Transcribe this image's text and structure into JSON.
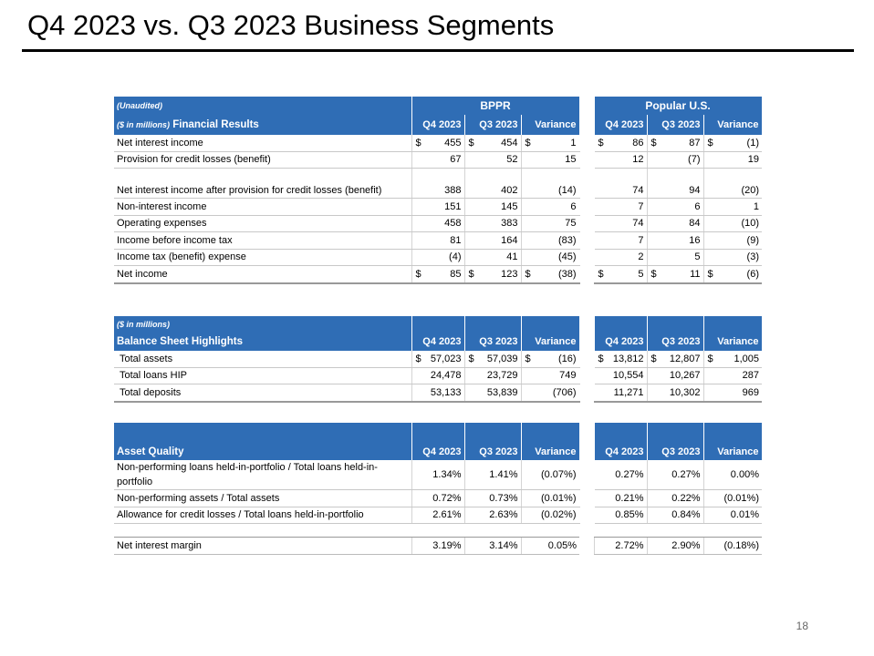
{
  "title": "Q4 2023 vs. Q3 2023 Business Segments",
  "page_number": "18",
  "accent_color": "#2f6db5",
  "groups": {
    "bppr": "BPPR",
    "us": "Popular U.S."
  },
  "columns": [
    "Q4 2023",
    "Q3 2023",
    "Variance"
  ],
  "financial": {
    "unaudited": "(Unaudited)",
    "units": "($ in millions)",
    "header": "Financial Results",
    "rows": [
      {
        "label": "Net interest income",
        "dollar": true,
        "values": [
          "455",
          "454",
          "1",
          "86",
          "87",
          "(1)"
        ]
      },
      {
        "label": "Provision for credit losses (benefit)",
        "values": [
          "67",
          "52",
          "15",
          "12",
          "(7)",
          "19"
        ]
      },
      {
        "label": "Net interest income after provision for credit losses (benefit)",
        "values": [
          "388",
          "402",
          "(14)",
          "74",
          "94",
          "(20)"
        ]
      },
      {
        "label": "Non-interest income",
        "values": [
          "151",
          "145",
          "6",
          "7",
          "6",
          "1"
        ]
      },
      {
        "label": "Operating expenses",
        "values": [
          "458",
          "383",
          "75",
          "74",
          "84",
          "(10)"
        ]
      },
      {
        "label": "Income before income tax",
        "values": [
          "81",
          "164",
          "(83)",
          "7",
          "16",
          "(9)"
        ]
      },
      {
        "label": "Income tax (benefit) expense",
        "values": [
          "(4)",
          "41",
          "(45)",
          "2",
          "5",
          "(3)"
        ]
      },
      {
        "label": "Net income",
        "dollar": true,
        "values": [
          "85",
          "123",
          "(38)",
          "5",
          "11",
          "(6)"
        ]
      }
    ]
  },
  "balance": {
    "units": "($ in millions)",
    "header": "Balance Sheet Highlights",
    "rows": [
      {
        "label": "Total assets",
        "dollar": true,
        "values": [
          "57,023",
          "57,039",
          "(16)",
          "13,812",
          "12,807",
          "1,005"
        ]
      },
      {
        "label": "Total loans HIP",
        "values": [
          "24,478",
          "23,729",
          "749",
          "10,554",
          "10,267",
          "287"
        ]
      },
      {
        "label": "Total deposits",
        "values": [
          "53,133",
          "53,839",
          "(706)",
          "11,271",
          "10,302",
          "969"
        ]
      }
    ]
  },
  "asset_quality": {
    "header": "Asset Quality",
    "rows": [
      {
        "label": "Non-performing loans held-in-portfolio / Total loans held-in-portfolio",
        "values": [
          "1.34%",
          "1.41%",
          "(0.07%)",
          "0.27%",
          "0.27%",
          "0.00%"
        ]
      },
      {
        "label": "Non-performing assets / Total assets",
        "values": [
          "0.72%",
          "0.73%",
          "(0.01%)",
          "0.21%",
          "0.22%",
          "(0.01%)"
        ]
      },
      {
        "label": "Allowance for credit losses / Total loans held-in-portfolio",
        "values": [
          "2.61%",
          "2.63%",
          "(0.02%)",
          "0.85%",
          "0.84%",
          "0.01%"
        ]
      }
    ],
    "nim": {
      "label": "Net interest margin",
      "values": [
        "3.19%",
        "3.14%",
        "0.05%",
        "2.72%",
        "2.90%",
        "(0.18%)"
      ]
    }
  }
}
